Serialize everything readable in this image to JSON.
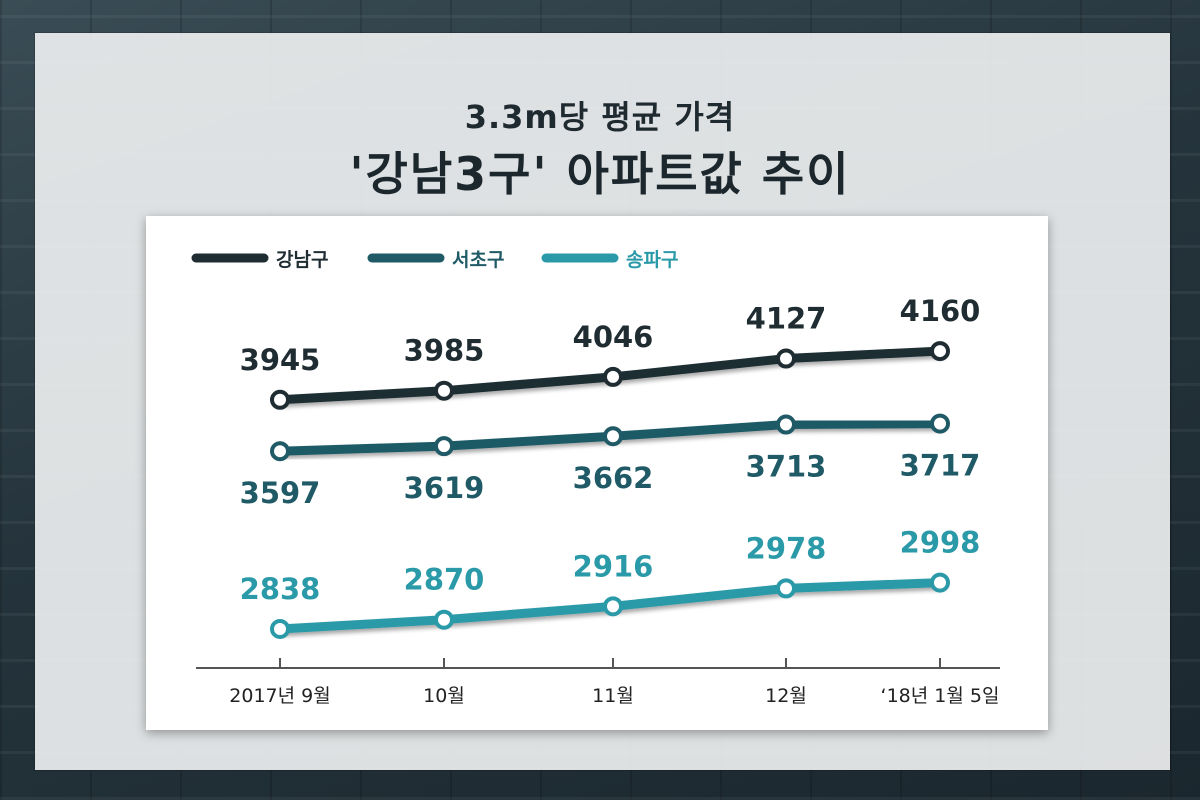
{
  "header": {
    "subtitle": "3.3m당 평균 가격",
    "title": "'강남3구' 아파트값 추이"
  },
  "chart_data": {
    "type": "line",
    "categories": [
      "2017년 9월",
      "10월",
      "11월",
      "12월",
      "‘18년 1월 5일"
    ],
    "series": [
      {
        "name": "강남구",
        "values": [
          3945,
          3985,
          4046,
          4127,
          4160
        ],
        "color": "#1f2d33"
      },
      {
        "name": "서초구",
        "values": [
          3597,
          3619,
          3662,
          3713,
          3717
        ],
        "color": "#1f5a66"
      },
      {
        "name": "송파구",
        "values": [
          2838,
          2870,
          2916,
          2978,
          2998
        ],
        "color": "#2b9aa8"
      }
    ],
    "legend": "top-left",
    "grid": false
  }
}
